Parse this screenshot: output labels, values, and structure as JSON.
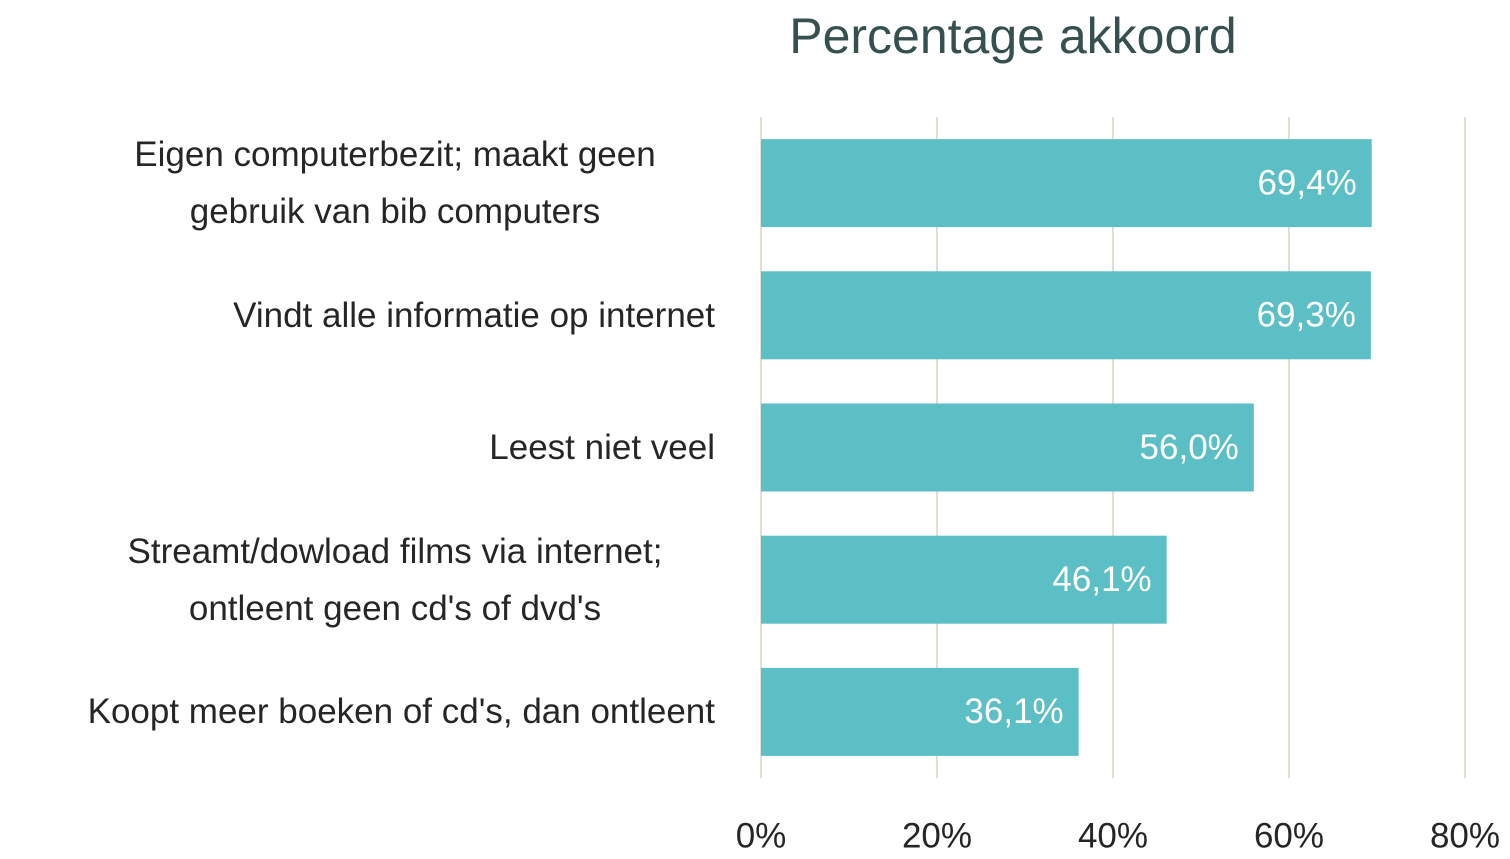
{
  "chart_data": {
    "type": "bar",
    "orientation": "horizontal",
    "title": "Percentage akkoord",
    "categories": [
      "Eigen computerbezit; maakt geen gebruik van bib computers",
      "Vindt alle informatie op internet",
      "Leest niet veel",
      "Streamt/dowload films via internet; ontleent geen cd's of dvd's",
      "Koopt meer boeken of cd's, dan ontleent"
    ],
    "values": [
      69.4,
      69.3,
      56.0,
      46.1,
      36.1
    ],
    "value_labels": [
      "69,4%",
      "69,3%",
      "56,0%",
      "46,1%",
      "36,1%"
    ],
    "color": "#5bbfc5",
    "xlim": [
      0,
      80
    ],
    "xticks": [
      {
        "value": 0,
        "label": "0%"
      },
      {
        "value": 20,
        "label": "20%"
      },
      {
        "value": 40,
        "label": "40%"
      },
      {
        "value": 60,
        "label": "60%"
      },
      {
        "value": 80,
        "label": "80%"
      }
    ],
    "grid": true
  }
}
